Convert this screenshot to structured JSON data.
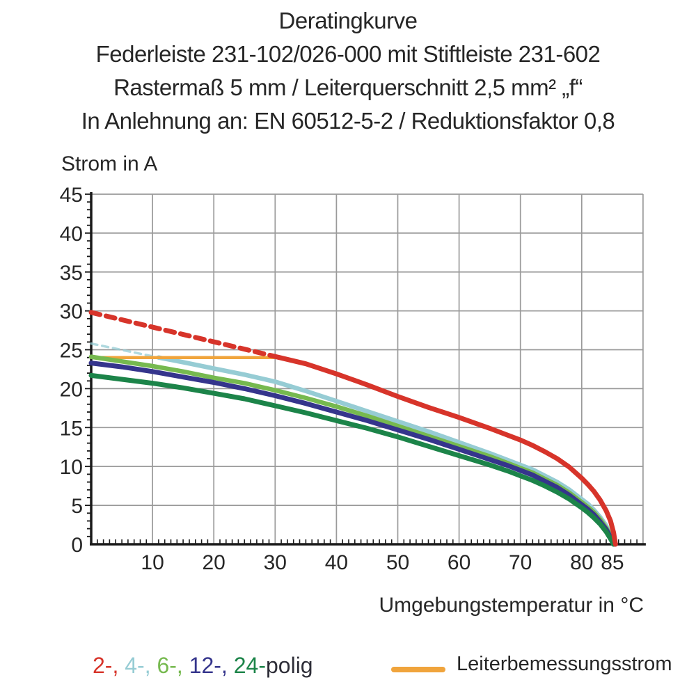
{
  "header": {
    "line1": "Deratingkurve",
    "line2": "Federleiste 231-102/026-000 mit Stiftleiste 231-602",
    "line3": "Rastermaß 5 mm / Leiterquerschnitt 2,5 mm² „f“",
    "line4": "In Anlehnung an: EN 60512-5-2 / Reduktionsfaktor 0,8"
  },
  "colors": {
    "red": "#d7342a",
    "cyan": "#96ccd4",
    "light_green": "#76b94f",
    "navy": "#35358c",
    "dark_green": "#1c8449",
    "orange": "#f0a43c",
    "grid": "#9a9a9a",
    "axis": "#1a1a1a",
    "text": "#262626"
  },
  "legend": {
    "poles": [
      {
        "label": "2-, ",
        "color": "#d7342a",
        "poles_count": "2"
      },
      {
        "label": "4-, ",
        "color": "#96ccd4",
        "poles_count": "4"
      },
      {
        "label": "6-, ",
        "color": "#76b94f",
        "poles_count": "6"
      },
      {
        "label": "12-, ",
        "color": "#35358c",
        "poles_count": "12"
      },
      {
        "label": "24-",
        "color": "#1c8449",
        "poles_count": "24"
      }
    ],
    "poles_suffix": "polig",
    "rated_label": "Leiterbemessungsstrom",
    "rated_color": "#f0a43c"
  },
  "chart_data": {
    "type": "line",
    "title": "Deratingkurve",
    "xlabel": "Umgebungstemperatur in °C",
    "ylabel": "Strom in A",
    "xlim": [
      0,
      90
    ],
    "ylim": [
      0,
      45
    ],
    "grid": true,
    "x_ticks_labeled": [
      10,
      20,
      30,
      40,
      50,
      60,
      70,
      80,
      85
    ],
    "y_ticks_labeled": [
      0,
      5,
      10,
      15,
      20,
      25,
      30,
      35,
      40,
      45
    ],
    "x_gridlines": [
      10,
      20,
      30,
      40,
      50,
      60,
      70,
      80,
      90
    ],
    "y_gridlines": [
      5,
      10,
      15,
      20,
      25,
      30,
      35,
      40,
      45
    ],
    "series": [
      {
        "name": "4-polig",
        "color": "#96ccd4",
        "width": 6.5,
        "segments": [
          {
            "style": "dashed",
            "width": 3.5,
            "opacity": 0.75,
            "dash": "9 7",
            "points": [
              [
                0,
                25.8
              ],
              [
                11,
                24
              ]
            ]
          },
          {
            "style": "solid",
            "points": [
              [
                11,
                24
              ],
              [
                15,
                23.4
              ],
              [
                20,
                22.6
              ],
              [
                25,
                21.8
              ],
              [
                30,
                20.9
              ],
              [
                35,
                19.7
              ],
              [
                40,
                18.4
              ],
              [
                45,
                17.1
              ],
              [
                50,
                15.8
              ],
              [
                55,
                14.5
              ],
              [
                60,
                13.1
              ],
              [
                65,
                11.7
              ],
              [
                68,
                10.8
              ],
              [
                70,
                10.2
              ],
              [
                72,
                9.6
              ],
              [
                74,
                8.8
              ],
              [
                76,
                8.0
              ],
              [
                78,
                7.0
              ],
              [
                80,
                5.8
              ],
              [
                81,
                5.2
              ],
              [
                82,
                4.4
              ],
              [
                83,
                3.5
              ],
              [
                84,
                2.4
              ],
              [
                84.7,
                1.3
              ],
              [
                85.3,
                0
              ]
            ]
          }
        ]
      },
      {
        "name": "Leiterbemessungsstrom",
        "color": "#f0a43c",
        "width": 4.5,
        "segments": [
          {
            "style": "solid",
            "points": [
              [
                0,
                24
              ],
              [
                30.7,
                24
              ]
            ]
          }
        ]
      },
      {
        "name": "6-polig",
        "color": "#76b94f",
        "width": 6.5,
        "segments": [
          {
            "style": "solid",
            "points": [
              [
                0,
                24.1
              ],
              [
                5,
                23.5
              ],
              [
                10,
                22.9
              ],
              [
                15,
                22.2
              ],
              [
                20,
                21.4
              ],
              [
                25,
                20.7
              ],
              [
                30,
                19.8
              ],
              [
                35,
                18.8
              ],
              [
                40,
                17.7
              ],
              [
                45,
                16.5
              ],
              [
                50,
                15.2
              ],
              [
                55,
                13.9
              ],
              [
                60,
                12.6
              ],
              [
                65,
                11.3
              ],
              [
                68,
                10.4
              ],
              [
                70,
                9.8
              ],
              [
                72,
                9.2
              ],
              [
                74,
                8.4
              ],
              [
                76,
                7.6
              ],
              [
                78,
                6.6
              ],
              [
                80,
                5.4
              ],
              [
                81,
                4.8
              ],
              [
                82,
                4.1
              ],
              [
                83,
                3.2
              ],
              [
                84,
                2.1
              ],
              [
                84.7,
                1.1
              ],
              [
                85.3,
                0
              ]
            ]
          }
        ]
      },
      {
        "name": "12-polig",
        "color": "#35358c",
        "width": 7,
        "segments": [
          {
            "style": "solid",
            "points": [
              [
                0,
                23.3
              ],
              [
                5,
                22.8
              ],
              [
                10,
                22.2
              ],
              [
                15,
                21.5
              ],
              [
                20,
                20.8
              ],
              [
                25,
                20.0
              ],
              [
                30,
                19.1
              ],
              [
                35,
                18.1
              ],
              [
                40,
                17.0
              ],
              [
                45,
                15.9
              ],
              [
                50,
                14.7
              ],
              [
                55,
                13.5
              ],
              [
                60,
                12.2
              ],
              [
                65,
                10.9
              ],
              [
                68,
                10.1
              ],
              [
                70,
                9.5
              ],
              [
                72,
                8.9
              ],
              [
                74,
                8.1
              ],
              [
                76,
                7.3
              ],
              [
                78,
                6.3
              ],
              [
                80,
                5.1
              ],
              [
                81,
                4.5
              ],
              [
                82,
                3.8
              ],
              [
                83,
                2.9
              ],
              [
                84,
                1.9
              ],
              [
                84.7,
                0.9
              ],
              [
                85.25,
                0
              ]
            ]
          }
        ]
      },
      {
        "name": "24-polig",
        "color": "#1c8449",
        "width": 7,
        "segments": [
          {
            "style": "solid",
            "points": [
              [
                0,
                21.7
              ],
              [
                5,
                21.2
              ],
              [
                10,
                20.7
              ],
              [
                15,
                20.1
              ],
              [
                20,
                19.4
              ],
              [
                25,
                18.7
              ],
              [
                30,
                17.8
              ],
              [
                35,
                16.9
              ],
              [
                40,
                15.9
              ],
              [
                45,
                14.9
              ],
              [
                50,
                13.8
              ],
              [
                55,
                12.6
              ],
              [
                60,
                11.4
              ],
              [
                65,
                10.2
              ],
              [
                68,
                9.4
              ],
              [
                70,
                8.8
              ],
              [
                72,
                8.2
              ],
              [
                74,
                7.5
              ],
              [
                76,
                6.7
              ],
              [
                78,
                5.8
              ],
              [
                80,
                4.7
              ],
              [
                81,
                4.1
              ],
              [
                82,
                3.4
              ],
              [
                83,
                2.6
              ],
              [
                84,
                1.6
              ],
              [
                84.7,
                0.7
              ],
              [
                85.2,
                0
              ]
            ]
          }
        ]
      },
      {
        "name": "2-polig",
        "color": "#d7342a",
        "width": 7,
        "segments": [
          {
            "style": "dashed",
            "dash": "13 9",
            "points": [
              [
                0,
                29.8
              ],
              [
                30.7,
                24
              ]
            ]
          },
          {
            "style": "solid",
            "points": [
              [
                30.7,
                24
              ],
              [
                35,
                23.2
              ],
              [
                40,
                21.9
              ],
              [
                45,
                20.5
              ],
              [
                50,
                19.0
              ],
              [
                55,
                17.6
              ],
              [
                60,
                16.3
              ],
              [
                65,
                14.9
              ],
              [
                68,
                14.0
              ],
              [
                70,
                13.4
              ],
              [
                72,
                12.7
              ],
              [
                74,
                11.9
              ],
              [
                76,
                11.0
              ],
              [
                78,
                9.9
              ],
              [
                80,
                8.5
              ],
              [
                81,
                7.7
              ],
              [
                82,
                6.8
              ],
              [
                83,
                5.7
              ],
              [
                84,
                4.3
              ],
              [
                84.7,
                3.0
              ],
              [
                85.2,
                1.5
              ],
              [
                85.5,
                0
              ]
            ]
          }
        ]
      }
    ]
  }
}
